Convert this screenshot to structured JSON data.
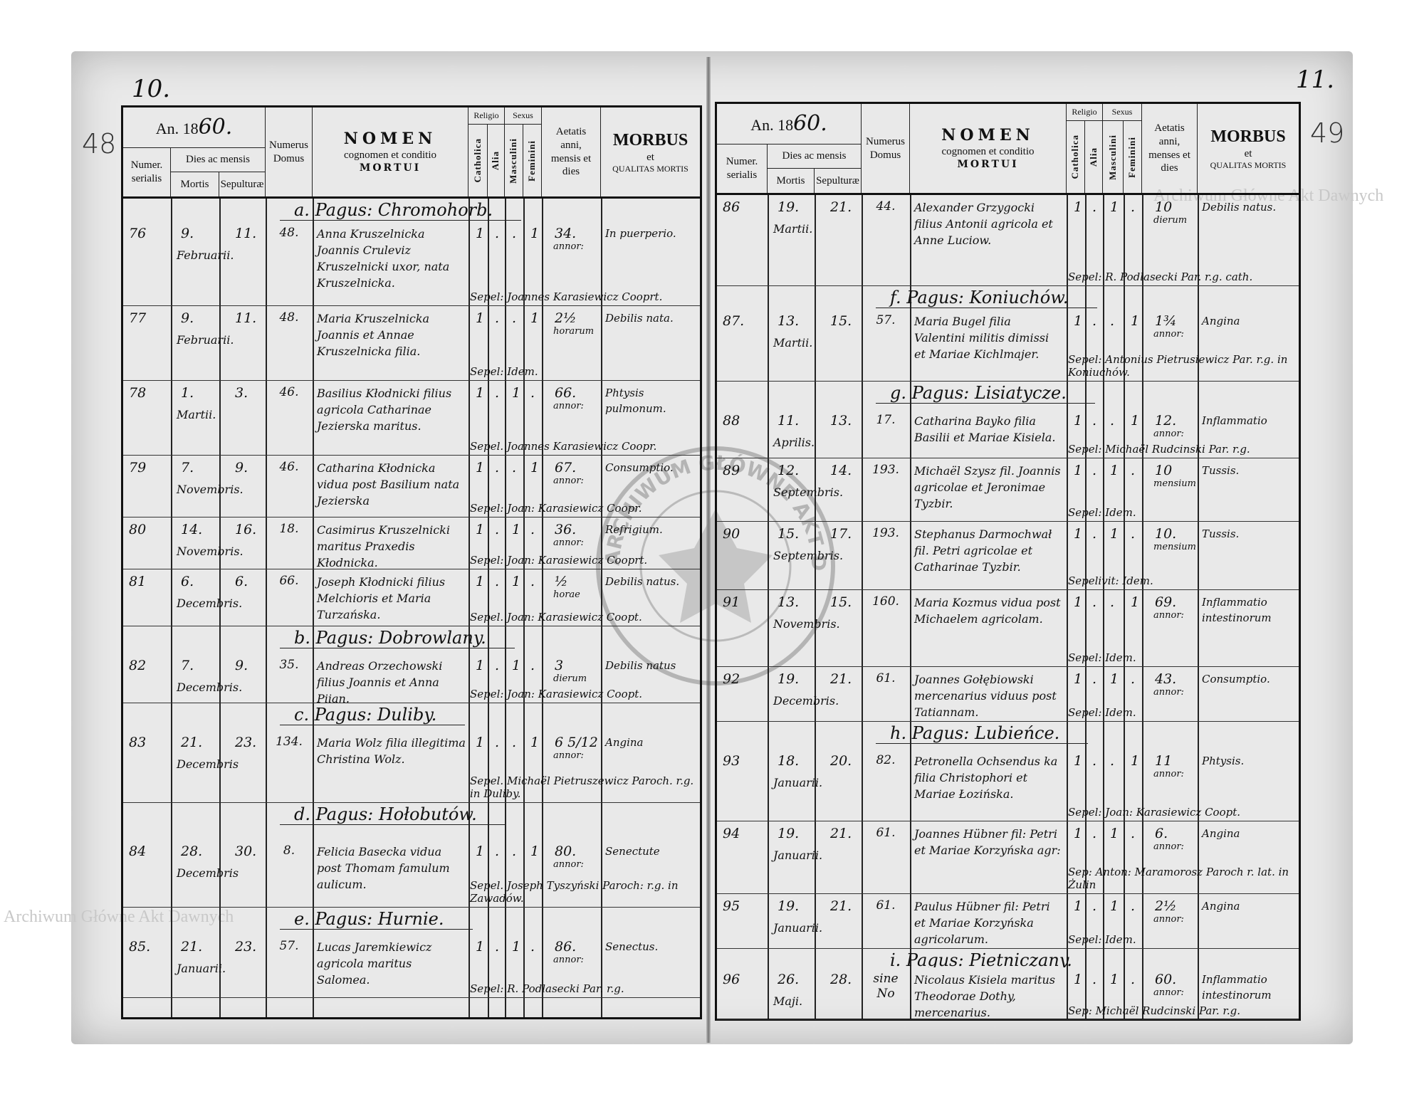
{
  "watermark": "Archiwum Główne Akt Dawnych",
  "stamp_text": "ARCHIWUM GŁÓWNE AKT DAWNYCH",
  "left": {
    "page_number": "10.",
    "margin_number": "48",
    "header": {
      "year_prefix": "An. 18",
      "year_suffix": "60.",
      "numer": "Numer.",
      "serialis": "serialis",
      "dies": "Dies ac mensis",
      "mortis": "Mortis",
      "sepulturae": "Sepulturæ",
      "numerus": "Numerus",
      "domus": "Domus",
      "nomen": "NOMEN",
      "cognomen": "cognomen et conditio",
      "mortui": "MORTUI",
      "religio": "Religio",
      "catholica": "Catholica",
      "alia": "Alia",
      "sexus": "Sexus",
      "masculini": "Masculini",
      "feminini": "Feminini",
      "aetatis": "Aetatis",
      "anni": "anni,",
      "mensis": "mensis et",
      "dies_age": "dies",
      "morbus": "MORBUS",
      "et": "et",
      "qualitas": "QUALITAS MORTIS"
    },
    "rows": [
      {
        "type": "pagus",
        "label": "a. Pagus: Chromohorb."
      },
      {
        "type": "entry",
        "num": "76",
        "mortis": "9.",
        "month": "Februarii.",
        "sepultura": "11.",
        "domus": "48.",
        "nomen": "Anna Kruszelnicka Joannis Cruleviz Kruszelnicki uxor, nata Kruszelnicka.",
        "catholica": "1",
        "alia": ".",
        "masculini": ".",
        "feminini": "1",
        "aetas": "34.",
        "aetas_unit": "annor:",
        "morbus": "In puerperio.",
        "sepel": "Sepel: Joannes Karasiewicz Cooprt."
      },
      {
        "type": "entry",
        "num": "77",
        "mortis": "9.",
        "month": "Februarii.",
        "sepultura": "11.",
        "domus": "48.",
        "nomen": "Maria Kruszelnicka Joannis et Annae Kruszelnicka filia.",
        "catholica": "1",
        "alia": ".",
        "masculini": ".",
        "feminini": "1",
        "aetas": "2½",
        "aetas_unit": "horarum",
        "morbus": "Debilis nata.",
        "sepel": "Sepel: Idem."
      },
      {
        "type": "entry",
        "num": "78",
        "mortis": "1.",
        "month": "Martii.",
        "sepultura": "3.",
        "domus": "46.",
        "nomen": "Basilius Kłodnicki filius agricola Catharinae Jezierska maritus.",
        "catholica": "1",
        "alia": ".",
        "masculini": "1",
        "feminini": ".",
        "aetas": "66.",
        "aetas_unit": "annor:",
        "morbus": "Phtysis pulmonum.",
        "sepel": "Sepel. Joannes Karasiewicz Coopr."
      },
      {
        "type": "entry",
        "num": "79",
        "mortis": "7.",
        "month": "Novembris.",
        "sepultura": "9.",
        "domus": "46.",
        "nomen": "Catharina Kłodnicka vidua post Basilium nata Jezierska",
        "catholica": "1",
        "alia": ".",
        "masculini": ".",
        "feminini": "1",
        "aetas": "67.",
        "aetas_unit": "annor:",
        "morbus": "Consumptio.",
        "sepel": "Sepel: Joan: Karasiewicz Coopr."
      },
      {
        "type": "entry",
        "num": "80",
        "mortis": "14.",
        "month": "Novembris.",
        "sepultura": "16.",
        "domus": "18.",
        "nomen": "Casimirus Kruszelnicki maritus Praxedis Kłodnicka.",
        "catholica": "1",
        "alia": ".",
        "masculini": "1",
        "feminini": ".",
        "aetas": "36.",
        "aetas_unit": "annor:",
        "morbus": "Refrigium.",
        "sepel": "Sepel: Joan: Karasiewicz Cooprt."
      },
      {
        "type": "entry",
        "num": "81",
        "mortis": "6.",
        "month": "Decembris.",
        "sepultura": "6.",
        "domus": "66.",
        "nomen": "Joseph Kłodnicki filius Melchioris et Maria Turzańska.",
        "catholica": "1",
        "alia": ".",
        "masculini": "1",
        "feminini": ".",
        "aetas": "½",
        "aetas_unit": "horae",
        "morbus": "Debilis natus.",
        "sepel": "Sepel. Joan: Karasiewicz Coopt."
      },
      {
        "type": "pagus",
        "label": "b. Pagus: Dobrowlany."
      },
      {
        "type": "entry",
        "num": "82",
        "mortis": "7.",
        "month": "Decembris.",
        "sepultura": "9.",
        "domus": "35.",
        "nomen": "Andreas Orzechowski filius Joannis et Anna Piian.",
        "catholica": "1",
        "alia": ".",
        "masculini": "1",
        "feminini": ".",
        "aetas": "3",
        "aetas_unit": "dierum",
        "morbus": "Debilis natus",
        "sepel": "Sepel: Joan: Karasiewicz Coopt."
      },
      {
        "type": "pagus",
        "label": "c. Pagus: Duliby."
      },
      {
        "type": "entry",
        "num": "83",
        "mortis": "21.",
        "month": "Decembris",
        "sepultura": "23.",
        "domus": "134.",
        "nomen": "Maria Wolz filia illegitima Christina Wolz.",
        "catholica": "1",
        "alia": ".",
        "masculini": ".",
        "feminini": "1",
        "aetas": "6 5/12",
        "aetas_unit": "annor:",
        "morbus": "Angina",
        "sepel": "Sepel. Michaël Pietruszewicz Paroch. r.g. in Duliby."
      },
      {
        "type": "pagus",
        "label": "d. Pagus: Hołobutów."
      },
      {
        "type": "entry",
        "num": "84",
        "mortis": "28.",
        "month": "Decembris",
        "sepultura": "30.",
        "domus": "8.",
        "nomen": "Felicia Basecka vidua post Thomam famulum aulicum.",
        "catholica": "1",
        "alia": ".",
        "masculini": ".",
        "feminini": "1",
        "aetas": "80.",
        "aetas_unit": "annor:",
        "morbus": "Senectute",
        "sepel": "Sepel. Joseph Tyszyński Paroch: r.g. in Zawadów."
      },
      {
        "type": "pagus",
        "label": "e. Pagus: Hurnie."
      },
      {
        "type": "entry",
        "num": "85.",
        "mortis": "21.",
        "month": "Januarii.",
        "sepultura": "23.",
        "domus": "57.",
        "nomen": "Lucas Jaremkiewicz agricola maritus Salomea.",
        "catholica": "1",
        "alia": ".",
        "masculini": "1",
        "feminini": ".",
        "aetas": "86.",
        "aetas_unit": "annor:",
        "morbus": "Senectus.",
        "sepel": "Sepel: R. Podlasecki Par. r.g."
      }
    ]
  },
  "right": {
    "page_number": "11.",
    "margin_number": "49",
    "header": {
      "year_prefix": "An. 18",
      "year_suffix": "60.",
      "numer": "Numer.",
      "serialis": "serialis",
      "dies": "Dies ac mensis",
      "mortis": "Mortis",
      "sepulturae": "Sepulturæ",
      "numerus": "Numerus",
      "domus": "Domus",
      "nomen": "NOMEN",
      "cognomen": "cognomen et conditio",
      "mortui": "MORTUI",
      "religio": "Religio",
      "catholica": "Catholica",
      "alia": "Alia",
      "sexus": "Sexus",
      "masculini": "Masculini",
      "feminini": "Feminini",
      "aetatis": "Aetatis",
      "anni": "anni,",
      "mensis": "menses et",
      "dies_age": "dies",
      "morbus": "MORBUS",
      "et": "et",
      "qualitas": "QUALITAS MORTIS"
    },
    "rows": [
      {
        "type": "entry",
        "num": "86",
        "mortis": "19.",
        "month": "Martii.",
        "sepultura": "21.",
        "domus": "44.",
        "nomen": "Alexander Grzygocki filius Antonii agricola et Anne Luciow.",
        "catholica": "1",
        "alia": ".",
        "masculini": "1",
        "feminini": ".",
        "aetas": "10",
        "aetas_unit": "dierum",
        "morbus": "Debilis natus.",
        "sepel": "Sepel: R. Podlasecki Par. r.g. cath."
      },
      {
        "type": "pagus",
        "label": "f. Pagus: Koniuchów."
      },
      {
        "type": "entry",
        "num": "87.",
        "mortis": "13.",
        "month": "Martii.",
        "sepultura": "15.",
        "domus": "57.",
        "nomen": "Maria Bugel filia Valentini militis dimissi et Mariae Kichlmajer.",
        "catholica": "1",
        "alia": ".",
        "masculini": ".",
        "feminini": "1",
        "aetas": "1¾",
        "aetas_unit": "annor:",
        "morbus": "Angina",
        "sepel": "Sepel: Antonius Pietrusiewicz Par. r.g. in Koniuchów."
      },
      {
        "type": "pagus",
        "label": "g. Pagus: Lisiatycze."
      },
      {
        "type": "entry",
        "num": "88",
        "mortis": "11.",
        "month": "Aprilis.",
        "sepultura": "13.",
        "domus": "17.",
        "nomen": "Catharina Bayko filia Basilii et Mariae Kisiela.",
        "catholica": "1",
        "alia": ".",
        "masculini": ".",
        "feminini": "1",
        "aetas": "12.",
        "aetas_unit": "annor:",
        "morbus": "Inflammatio",
        "sepel": "Sepel: Michaël Rudcinski Par. r.g."
      },
      {
        "type": "entry",
        "num": "89",
        "mortis": "12.",
        "month": "Septembris.",
        "sepultura": "14.",
        "domus": "193.",
        "nomen": "Michaël Szysz fil. Joannis agricolae et Jeronimae Tyzbir.",
        "catholica": "1",
        "alia": ".",
        "masculini": "1",
        "feminini": ".",
        "aetas": "10",
        "aetas_unit": "mensium",
        "morbus": "Tussis.",
        "sepel": "Sepel: Idem."
      },
      {
        "type": "entry",
        "num": "90",
        "mortis": "15.",
        "month": "Septembris.",
        "sepultura": "17.",
        "domus": "193.",
        "nomen": "Stephanus Darmochwał fil. Petri agricolae et Catharinae Tyzbir.",
        "catholica": "1",
        "alia": ".",
        "masculini": "1",
        "feminini": ".",
        "aetas": "10.",
        "aetas_unit": "mensium",
        "morbus": "Tussis.",
        "sepel": "Sepelivit: Idem."
      },
      {
        "type": "entry",
        "num": "91",
        "mortis": "13.",
        "month": "Novembris.",
        "sepultura": "15.",
        "domus": "160.",
        "nomen": "Maria Kozmus vidua post Michaelem agricolam.",
        "catholica": "1",
        "alia": ".",
        "masculini": ".",
        "feminini": "1",
        "aetas": "69.",
        "aetas_unit": "annor:",
        "morbus": "Inflammatio intestinorum",
        "sepel": "Sepel: Idem."
      },
      {
        "type": "entry",
        "num": "92",
        "mortis": "19.",
        "month": "Decembris.",
        "sepultura": "21.",
        "domus": "61.",
        "nomen": "Joannes Gołębiowski mercenarius viduus post Tatiannam.",
        "catholica": "1",
        "alia": ".",
        "masculini": "1",
        "feminini": ".",
        "aetas": "43.",
        "aetas_unit": "annor:",
        "morbus": "Consumptio.",
        "sepel": "Sepel: Idem."
      },
      {
        "type": "pagus",
        "label": "h. Pagus: Lubieńce."
      },
      {
        "type": "entry",
        "num": "93",
        "mortis": "18.",
        "month": "Januarii.",
        "sepultura": "20.",
        "domus": "82.",
        "nomen": "Petronella Ochsendus ka filia Christophori et Mariae Łozińska.",
        "catholica": "1",
        "alia": ".",
        "masculini": ".",
        "feminini": "1",
        "aetas": "11",
        "aetas_unit": "annor:",
        "morbus": "Phtysis.",
        "sepel": "Sepel: Joan: Karasiewicz Coopt."
      },
      {
        "type": "entry",
        "num": "94",
        "mortis": "19.",
        "month": "Januarii.",
        "sepultura": "21.",
        "domus": "61.",
        "nomen": "Joannes Hübner fil: Petri et Mariae Korzyńska agr:",
        "catholica": "1",
        "alia": ".",
        "masculini": "1",
        "feminini": ".",
        "aetas": "6.",
        "aetas_unit": "annor:",
        "morbus": "Angina",
        "sepel": "Sep: Anton: Maramorosz Paroch r. lat. in Żulin"
      },
      {
        "type": "entry",
        "num": "95",
        "mortis": "19.",
        "month": "Januarii.",
        "sepultura": "21.",
        "domus": "61.",
        "nomen": "Paulus Hübner fil: Petri et Mariae Korzyńska agricolarum.",
        "catholica": "1",
        "alia": ".",
        "masculini": "1",
        "feminini": ".",
        "aetas": "2½",
        "aetas_unit": "annor:",
        "morbus": "Angina",
        "sepel": "Sepel: Idem."
      },
      {
        "type": "pagus",
        "label": "i. Pagus: Pietniczany."
      },
      {
        "type": "entry",
        "num": "96",
        "mortis": "26.",
        "month": "Maji.",
        "sepultura": "28.",
        "domus": "sine No",
        "nomen": "Nicolaus Kisiela maritus Theodorae Dothy, mercenarius.",
        "catholica": "1",
        "alia": ".",
        "masculini": "1",
        "feminini": ".",
        "aetas": "60.",
        "aetas_unit": "annor:",
        "morbus": "Inflammatio intestinorum",
        "sepel": "Sep: Michaël Rudcinski Par. r.g."
      }
    ]
  }
}
